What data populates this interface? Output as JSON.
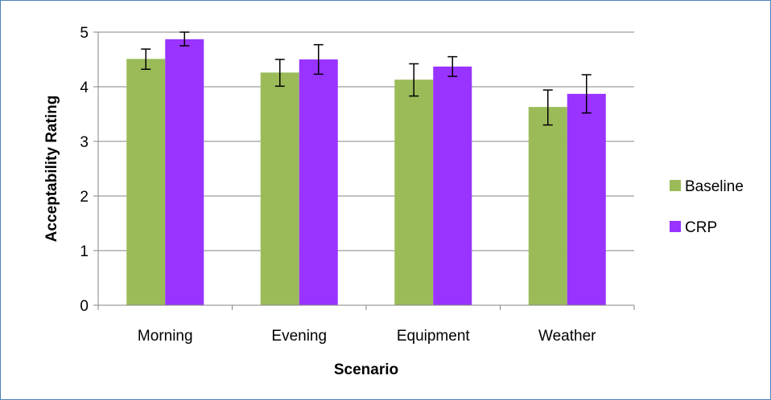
{
  "chart_data": {
    "type": "bar",
    "title": "",
    "xlabel": "Scenario",
    "ylabel": "Acceptability Rating",
    "categories": [
      "Morning",
      "Evening",
      "Equipment",
      "Weather"
    ],
    "ylim": [
      0,
      5
    ],
    "yticks": [
      "0",
      "1",
      "2",
      "3",
      "4",
      "5"
    ],
    "grid": true,
    "legend_position": "right",
    "series": [
      {
        "name": "Baseline",
        "color": "#9BBB59",
        "values": [
          4.51,
          4.26,
          4.13,
          3.63
        ],
        "error_low": [
          4.32,
          4.01,
          3.83,
          3.3
        ],
        "error_high": [
          4.69,
          4.5,
          4.42,
          3.94
        ]
      },
      {
        "name": "CRP",
        "color": "#9933FF",
        "values": [
          4.87,
          4.5,
          4.37,
          3.87
        ],
        "error_low": [
          4.75,
          4.23,
          4.19,
          3.52
        ],
        "error_high": [
          5.0,
          4.77,
          4.55,
          4.22
        ]
      }
    ]
  }
}
